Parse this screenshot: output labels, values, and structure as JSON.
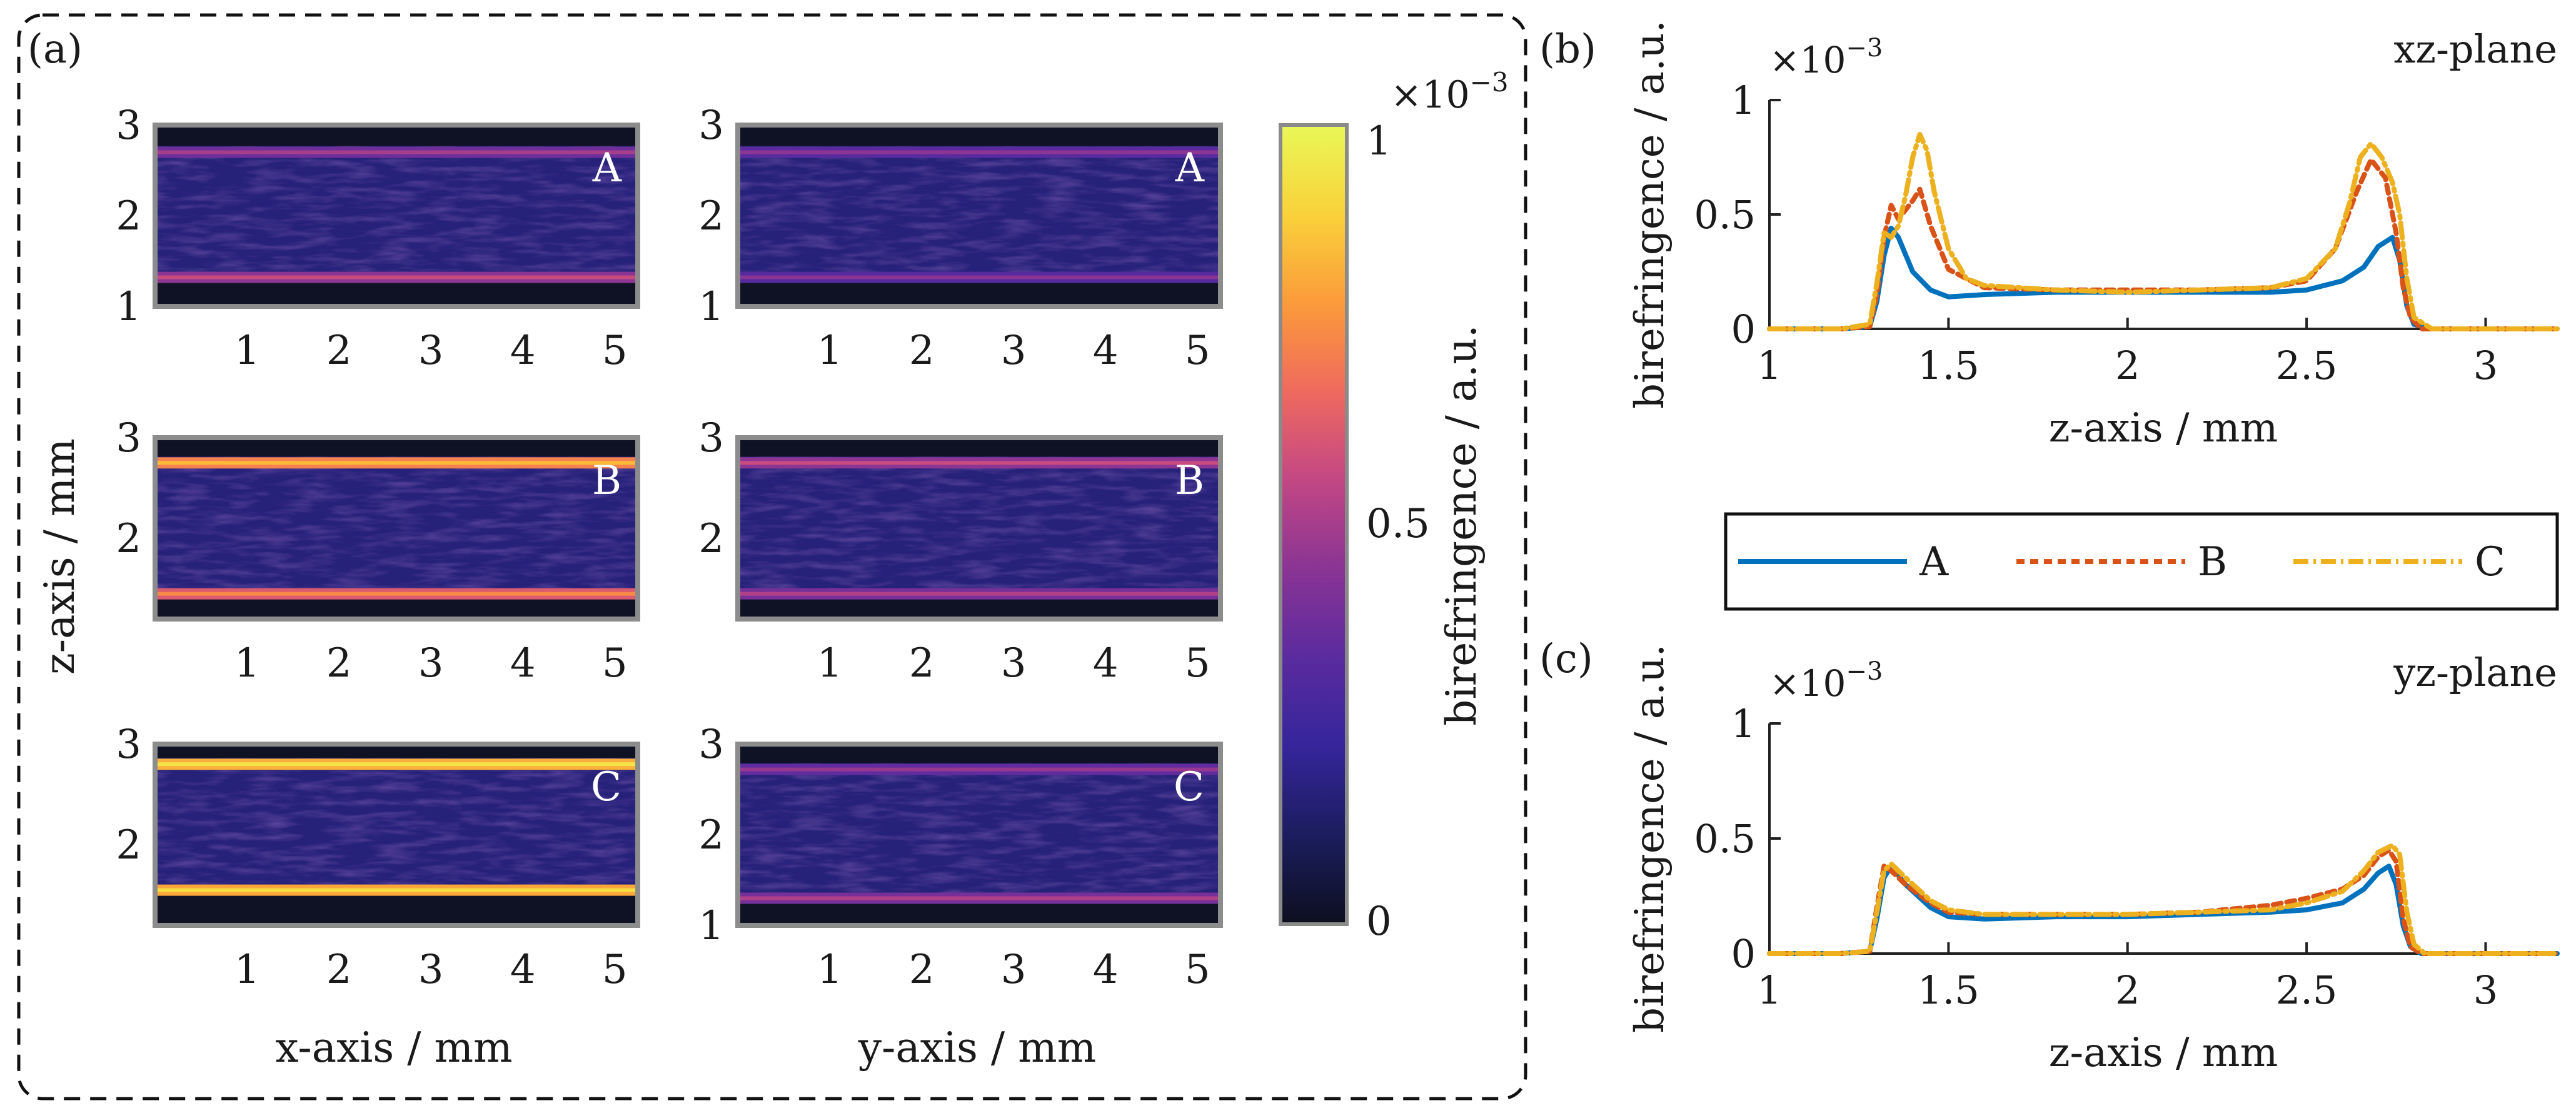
{
  "figure": {
    "panel_a_label": "(a)",
    "panel_b_label": "(b)",
    "panel_c_label": "(c)"
  },
  "panel_a": {
    "x_axis_label_left": "x-axis / mm",
    "x_axis_label_right": "y-axis / mm",
    "z_axis_label": "z-axis / mm",
    "x_ticks": [
      "1",
      "2",
      "3",
      "4",
      "5"
    ],
    "colorbar": {
      "label": "birefringence / a.u.",
      "multiplier_base": "×10",
      "multiplier_exp": "−3",
      "ticks": [
        {
          "label": "1",
          "value": 1.0
        },
        {
          "label": "0.5",
          "value": 0.5
        },
        {
          "label": "0",
          "value": 0.0
        }
      ],
      "colormap": [
        "#0d0f1f",
        "#1b1d5e",
        "#35259b",
        "#5a2b9f",
        "#8a3494",
        "#c24784",
        "#ef6a5e",
        "#fb9b3a",
        "#f9d23a",
        "#e9f857"
      ]
    },
    "maps": [
      {
        "id": "xz-A",
        "sample": "A",
        "z_ticks": [
          "3",
          "2",
          "1"
        ],
        "z_range": [
          1.0,
          3.0
        ],
        "band_low": 1.32,
        "band_high": 2.7,
        "low_intensity": 0.45,
        "high_intensity": 0.38
      },
      {
        "id": "yz-A",
        "sample": "A",
        "z_ticks": [
          "3",
          "2",
          "1"
        ],
        "z_range": [
          1.0,
          3.0
        ],
        "band_low": 1.32,
        "band_high": 2.7,
        "low_intensity": 0.32,
        "high_intensity": 0.33
      },
      {
        "id": "xz-B",
        "sample": "B",
        "z_ticks": [
          "3",
          "2"
        ],
        "z_range": [
          1.2,
          3.0
        ],
        "band_low": 1.45,
        "band_high": 2.75,
        "low_intensity": 0.62,
        "high_intensity": 0.72
      },
      {
        "id": "yz-B",
        "sample": "B",
        "z_ticks": [
          "3",
          "2"
        ],
        "z_range": [
          1.2,
          3.0
        ],
        "band_low": 1.45,
        "band_high": 2.75,
        "low_intensity": 0.4,
        "high_intensity": 0.45
      },
      {
        "id": "xz-C",
        "sample": "C",
        "z_ticks": [
          "3",
          "2"
        ],
        "z_range": [
          1.2,
          3.0
        ],
        "band_low": 1.55,
        "band_high": 2.8,
        "low_intensity": 0.8,
        "high_intensity": 0.82
      },
      {
        "id": "yz-C",
        "sample": "C",
        "z_ticks": [
          "3",
          "2",
          "1"
        ],
        "z_range": [
          1.0,
          3.0
        ],
        "band_low": 1.3,
        "band_high": 2.72,
        "low_intensity": 0.4,
        "high_intensity": 0.35
      }
    ]
  },
  "chart_data": [
    {
      "type": "line",
      "panel": "(b)",
      "title": "xz-plane",
      "xlabel": "z-axis / mm",
      "ylabel": "birefringence / a.u.",
      "y_multiplier_base": "×10",
      "y_multiplier_exp": "−3",
      "xlim": [
        1.0,
        3.2
      ],
      "ylim": [
        0,
        1
      ],
      "x_ticks": [
        {
          "label": "1",
          "value": 1.0
        },
        {
          "label": "1.5",
          "value": 1.5
        },
        {
          "label": "2",
          "value": 2.0
        },
        {
          "label": "2.5",
          "value": 2.5
        },
        {
          "label": "3",
          "value": 3.0
        }
      ],
      "y_ticks": [
        {
          "label": "0",
          "value": 0.0
        },
        {
          "label": "0.5",
          "value": 0.5
        },
        {
          "label": "1",
          "value": 1.0
        }
      ],
      "series": [
        {
          "name": "A",
          "color": "#0072BD",
          "dash": "",
          "x": [
            1.0,
            1.2,
            1.28,
            1.3,
            1.32,
            1.34,
            1.36,
            1.4,
            1.45,
            1.5,
            1.6,
            1.8,
            2.0,
            2.2,
            2.4,
            2.5,
            2.6,
            2.66,
            2.7,
            2.74,
            2.76,
            2.78,
            2.8,
            2.85,
            3.2
          ],
          "y": [
            0,
            0,
            0.01,
            0.12,
            0.32,
            0.44,
            0.4,
            0.25,
            0.17,
            0.14,
            0.15,
            0.16,
            0.16,
            0.16,
            0.16,
            0.17,
            0.21,
            0.27,
            0.36,
            0.4,
            0.3,
            0.1,
            0.02,
            0,
            0
          ]
        },
        {
          "name": "B",
          "color": "#D95319",
          "dash": "13,9",
          "x": [
            1.0,
            1.2,
            1.28,
            1.3,
            1.32,
            1.34,
            1.36,
            1.4,
            1.42,
            1.45,
            1.5,
            1.6,
            1.8,
            2.0,
            2.2,
            2.4,
            2.5,
            2.58,
            2.64,
            2.68,
            2.72,
            2.75,
            2.77,
            2.79,
            2.82,
            3.2
          ],
          "y": [
            0,
            0,
            0.01,
            0.15,
            0.4,
            0.54,
            0.48,
            0.56,
            0.61,
            0.45,
            0.26,
            0.18,
            0.17,
            0.17,
            0.17,
            0.18,
            0.21,
            0.35,
            0.6,
            0.74,
            0.66,
            0.42,
            0.18,
            0.05,
            0,
            0
          ]
        },
        {
          "name": "C",
          "color": "#EDB120",
          "dash": "24,8,4,8",
          "x": [
            1.0,
            1.2,
            1.28,
            1.3,
            1.32,
            1.34,
            1.36,
            1.38,
            1.4,
            1.42,
            1.44,
            1.46,
            1.5,
            1.55,
            1.6,
            1.8,
            2.0,
            2.2,
            2.4,
            2.5,
            2.58,
            2.62,
            2.65,
            2.68,
            2.71,
            2.74,
            2.76,
            2.78,
            2.8,
            2.85,
            3.2
          ],
          "y": [
            0,
            0,
            0.02,
            0.2,
            0.42,
            0.4,
            0.45,
            0.58,
            0.75,
            0.85,
            0.78,
            0.6,
            0.35,
            0.22,
            0.19,
            0.17,
            0.16,
            0.17,
            0.18,
            0.22,
            0.35,
            0.55,
            0.75,
            0.81,
            0.75,
            0.64,
            0.5,
            0.22,
            0.05,
            0,
            0
          ]
        }
      ]
    },
    {
      "type": "line",
      "panel": "(c)",
      "title": "yz-plane",
      "xlabel": "z-axis / mm",
      "ylabel": "birefringence / a.u.",
      "y_multiplier_base": "×10",
      "y_multiplier_exp": "−3",
      "xlim": [
        1.0,
        3.2
      ],
      "ylim": [
        0,
        1
      ],
      "x_ticks": [
        {
          "label": "1",
          "value": 1.0
        },
        {
          "label": "1.5",
          "value": 1.5
        },
        {
          "label": "2",
          "value": 2.0
        },
        {
          "label": "2.5",
          "value": 2.5
        },
        {
          "label": "3",
          "value": 3.0
        }
      ],
      "y_ticks": [
        {
          "label": "0",
          "value": 0.0
        },
        {
          "label": "0.5",
          "value": 0.5
        },
        {
          "label": "1",
          "value": 1.0
        }
      ],
      "series": [
        {
          "name": "A",
          "color": "#0072BD",
          "dash": "",
          "x": [
            1.0,
            1.2,
            1.28,
            1.3,
            1.32,
            1.34,
            1.38,
            1.45,
            1.5,
            1.6,
            1.8,
            2.0,
            2.2,
            2.4,
            2.5,
            2.6,
            2.66,
            2.7,
            2.73,
            2.75,
            2.77,
            2.79,
            2.82,
            3.2
          ],
          "y": [
            0,
            0,
            0.01,
            0.15,
            0.33,
            0.38,
            0.3,
            0.2,
            0.16,
            0.15,
            0.16,
            0.16,
            0.17,
            0.18,
            0.19,
            0.22,
            0.28,
            0.35,
            0.38,
            0.3,
            0.12,
            0.03,
            0,
            0
          ]
        },
        {
          "name": "B",
          "color": "#D95319",
          "dash": "13,9",
          "x": [
            1.0,
            1.2,
            1.28,
            1.3,
            1.32,
            1.34,
            1.38,
            1.45,
            1.5,
            1.6,
            1.8,
            2.0,
            2.2,
            2.4,
            2.5,
            2.6,
            2.66,
            2.7,
            2.73,
            2.75,
            2.77,
            2.79,
            2.82,
            3.2
          ],
          "y": [
            0,
            0,
            0.01,
            0.2,
            0.38,
            0.36,
            0.3,
            0.22,
            0.18,
            0.17,
            0.17,
            0.17,
            0.18,
            0.21,
            0.24,
            0.28,
            0.34,
            0.42,
            0.45,
            0.4,
            0.15,
            0.03,
            0,
            0
          ]
        },
        {
          "name": "C",
          "color": "#EDB120",
          "dash": "24,8,4,8",
          "x": [
            1.0,
            1.2,
            1.28,
            1.3,
            1.32,
            1.34,
            1.38,
            1.45,
            1.5,
            1.6,
            1.8,
            2.0,
            2.2,
            2.4,
            2.5,
            2.6,
            2.66,
            2.7,
            2.74,
            2.76,
            2.78,
            2.8,
            2.83,
            3.2
          ],
          "y": [
            0,
            0,
            0.01,
            0.18,
            0.36,
            0.39,
            0.33,
            0.23,
            0.19,
            0.17,
            0.17,
            0.17,
            0.18,
            0.19,
            0.22,
            0.27,
            0.36,
            0.44,
            0.47,
            0.43,
            0.18,
            0.04,
            0,
            0
          ]
        }
      ]
    }
  ],
  "legend": {
    "items": [
      "A",
      "B",
      "C"
    ]
  }
}
